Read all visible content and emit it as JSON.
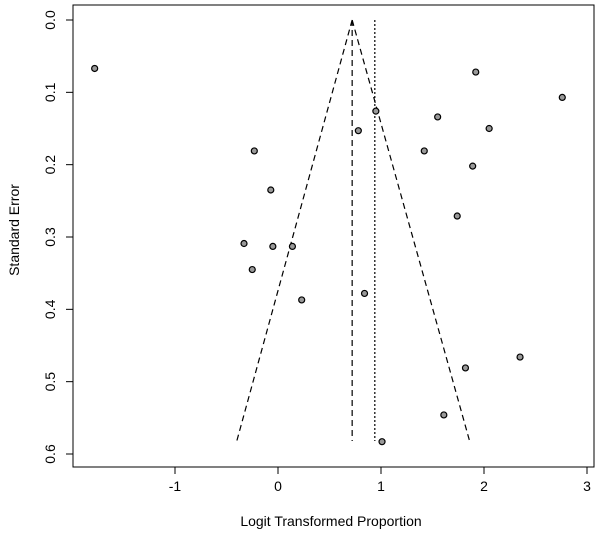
{
  "chart_data": {
    "type": "scatter",
    "subtype": "funnel plot",
    "title": "",
    "xlabel": "Logit Transformed Proportion",
    "ylabel": "Standard Error",
    "xlim": [
      -1.85,
      3.0
    ],
    "ylim": [
      0.6,
      0.0
    ],
    "y_reversed": true,
    "x_ticks": [
      -1,
      0,
      1,
      2,
      3
    ],
    "x_tick_labels": [
      "-1",
      "0",
      "1",
      "2",
      "3"
    ],
    "y_ticks": [
      0.0,
      0.1,
      0.2,
      0.3,
      0.4,
      0.5,
      0.6
    ],
    "y_tick_labels": [
      "0.0",
      "0.1",
      "0.2",
      "0.3",
      "0.4",
      "0.5",
      "0.6"
    ],
    "grid": false,
    "legend": "none",
    "points": [
      {
        "x": -1.78,
        "y": 0.067
      },
      {
        "x": 1.92,
        "y": 0.072
      },
      {
        "x": 2.76,
        "y": 0.107
      },
      {
        "x": 0.95,
        "y": 0.126
      },
      {
        "x": 1.55,
        "y": 0.134
      },
      {
        "x": 2.05,
        "y": 0.15
      },
      {
        "x": 0.78,
        "y": 0.153
      },
      {
        "x": -0.23,
        "y": 0.181
      },
      {
        "x": 1.42,
        "y": 0.181
      },
      {
        "x": 1.89,
        "y": 0.202
      },
      {
        "x": -0.07,
        "y": 0.235
      },
      {
        "x": 1.74,
        "y": 0.271
      },
      {
        "x": -0.33,
        "y": 0.309
      },
      {
        "x": -0.05,
        "y": 0.313
      },
      {
        "x": 0.14,
        "y": 0.313
      },
      {
        "x": -0.25,
        "y": 0.345
      },
      {
        "x": 0.23,
        "y": 0.387
      },
      {
        "x": 0.84,
        "y": 0.378
      },
      {
        "x": 2.35,
        "y": 0.466
      },
      {
        "x": 1.82,
        "y": 0.481
      },
      {
        "x": 1.61,
        "y": 0.546
      },
      {
        "x": 1.01,
        "y": 0.583
      }
    ],
    "pooled_estimate": 0.72,
    "reference_line": 0.94,
    "funnel_limits": {
      "apex": {
        "x": 0.72,
        "y": 0.0
      },
      "bottom_left": {
        "x": -0.4,
        "y": 0.582
      },
      "bottom_right": {
        "x": 1.86,
        "y": 0.582
      }
    },
    "colors": {
      "points": "#000000",
      "lines": "#000000",
      "background": "#ffffff"
    }
  }
}
